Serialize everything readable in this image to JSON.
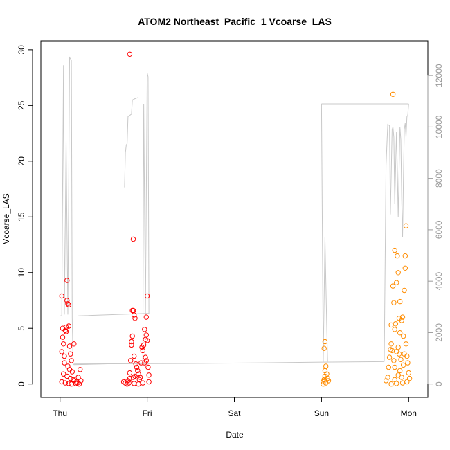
{
  "chart_data": {
    "type": "scatter",
    "title": "ATOM2 Northeast_Pacific_1 Vcoarse_LAS",
    "xlabel": "Date",
    "ylabel": "Vcoarse_LAS",
    "x_tick_labels": [
      "Thu",
      "Fri",
      "Sat",
      "Sun",
      "Mon"
    ],
    "x_tick_values": [
      0,
      1,
      2,
      3,
      4
    ],
    "x_unit": "days from Thu 00:00",
    "xlim": [
      -0.22,
      4.22
    ],
    "ylim": [
      -1.2,
      30.8
    ],
    "y_ticks": [
      0,
      5,
      10,
      15,
      20,
      25,
      30
    ],
    "y2lim": [
      -520,
      13350
    ],
    "y2_ticks": [
      0,
      2000,
      4000,
      6000,
      8000,
      10000,
      12000
    ],
    "y2_label": "",
    "grid": false,
    "colors": {
      "series_thu_fri": "#ff0000",
      "series_sun_mon": "#ff8c00",
      "altitude_line": "#c8c8c8",
      "right_axis": "#9a9a9a",
      "frame": "#000000"
    },
    "series": [
      {
        "color": "#ff0000",
        "marker": "open-circle",
        "points": [
          [
            0.02,
            7.9
          ],
          [
            0.03,
            5.0
          ],
          [
            0.03,
            4.2
          ],
          [
            0.04,
            3.6
          ],
          [
            0.02,
            2.9
          ],
          [
            0.05,
            2.5
          ],
          [
            0.06,
            4.8
          ],
          [
            0.07,
            5.1
          ],
          [
            0.07,
            4.7
          ],
          [
            0.08,
            9.3
          ],
          [
            0.08,
            7.5
          ],
          [
            0.09,
            7.2
          ],
          [
            0.1,
            7.1
          ],
          [
            0.1,
            5.2
          ],
          [
            0.11,
            3.4
          ],
          [
            0.12,
            2.7
          ],
          [
            0.13,
            2.1
          ],
          [
            0.05,
            1.9
          ],
          [
            0.09,
            1.6
          ],
          [
            0.11,
            1.3
          ],
          [
            0.14,
            1.1
          ],
          [
            0.04,
            0.9
          ],
          [
            0.08,
            0.7
          ],
          [
            0.12,
            0.5
          ],
          [
            0.15,
            0.4
          ],
          [
            0.16,
            0.3
          ],
          [
            0.02,
            0.2
          ],
          [
            0.06,
            0.1
          ],
          [
            0.1,
            0.05
          ],
          [
            0.13,
            0.0
          ],
          [
            0.18,
            0.05
          ],
          [
            0.2,
            0.1
          ],
          [
            0.22,
            0.0
          ],
          [
            0.24,
            0.3
          ],
          [
            0.21,
            0.6
          ],
          [
            0.23,
            1.3
          ],
          [
            0.16,
            3.6
          ],
          [
            0.19,
            0.2
          ],
          [
            0.73,
            0.2
          ],
          [
            0.75,
            0.1
          ],
          [
            0.78,
            0.3
          ],
          [
            0.8,
            0.5
          ],
          [
            0.8,
            1.0
          ],
          [
            0.81,
            2.1
          ],
          [
            0.82,
            3.8
          ],
          [
            0.82,
            3.5
          ],
          [
            0.83,
            4.3
          ],
          [
            0.83,
            6.6
          ],
          [
            0.84,
            6.6
          ],
          [
            0.85,
            6.2
          ],
          [
            0.86,
            5.9
          ],
          [
            0.84,
            13.0
          ],
          [
            0.8,
            29.6
          ],
          [
            0.85,
            2.5
          ],
          [
            0.87,
            1.8
          ],
          [
            0.88,
            1.5
          ],
          [
            0.89,
            1.2
          ],
          [
            0.9,
            0.9
          ],
          [
            0.86,
            0.7
          ],
          [
            0.84,
            0.6
          ],
          [
            0.91,
            0.4
          ],
          [
            0.92,
            0.6
          ],
          [
            0.93,
            1.9
          ],
          [
            0.94,
            3.3
          ],
          [
            0.95,
            3.0
          ],
          [
            0.96,
            3.5
          ],
          [
            0.97,
            1.9
          ],
          [
            0.98,
            2.4
          ],
          [
            0.99,
            2.1
          ],
          [
            1.0,
            3.9
          ],
          [
            0.99,
            4.4
          ],
          [
            0.98,
            4.0
          ],
          [
            0.97,
            4.9
          ],
          [
            0.99,
            6.0
          ],
          [
            1.0,
            7.9
          ],
          [
            1.01,
            1.5
          ],
          [
            1.02,
            0.8
          ],
          [
            1.02,
            0.2
          ],
          [
            0.95,
            0.1
          ],
          [
            0.9,
            0.0
          ],
          [
            0.85,
            0.05
          ],
          [
            0.77,
            0.0
          ],
          [
            0.79,
            0.1
          ]
        ]
      },
      {
        "color": "#ff8c00",
        "marker": "open-circle",
        "points": [
          [
            3.02,
            0.2
          ],
          [
            3.03,
            0.4
          ],
          [
            3.04,
            0.7
          ],
          [
            3.04,
            1.2
          ],
          [
            3.05,
            1.6
          ],
          [
            3.03,
            3.2
          ],
          [
            3.04,
            3.8
          ],
          [
            3.06,
            0.9
          ],
          [
            3.07,
            0.5
          ],
          [
            3.05,
            0.1
          ],
          [
            3.08,
            0.3
          ],
          [
            3.02,
            0.0
          ],
          [
            3.74,
            0.3
          ],
          [
            3.76,
            0.6
          ],
          [
            3.77,
            1.5
          ],
          [
            3.78,
            2.4
          ],
          [
            3.79,
            3.1
          ],
          [
            3.8,
            3.6
          ],
          [
            3.81,
            3.0
          ],
          [
            3.8,
            5.3
          ],
          [
            3.82,
            8.8
          ],
          [
            3.83,
            7.3
          ],
          [
            3.83,
            2.1
          ],
          [
            3.84,
            1.5
          ],
          [
            3.84,
            4.9
          ],
          [
            3.85,
            5.4
          ],
          [
            3.86,
            9.1
          ],
          [
            3.87,
            11.5
          ],
          [
            3.88,
            10.0
          ],
          [
            3.88,
            3.3
          ],
          [
            3.89,
            2.7
          ],
          [
            3.89,
            5.9
          ],
          [
            3.9,
            4.6
          ],
          [
            3.91,
            2.2
          ],
          [
            3.92,
            5.7
          ],
          [
            3.93,
            6.0
          ],
          [
            3.94,
            4.3
          ],
          [
            3.94,
            1.7
          ],
          [
            3.95,
            8.4
          ],
          [
            3.96,
            11.5
          ],
          [
            3.96,
            10.4
          ],
          [
            3.97,
            14.2
          ],
          [
            3.98,
            2.5
          ],
          [
            3.99,
            1.9
          ],
          [
            4.0,
            1.0
          ],
          [
            4.01,
            0.5
          ],
          [
            3.98,
            0.2
          ],
          [
            3.93,
            0.1
          ],
          [
            3.86,
            0.05
          ],
          [
            3.8,
            0.0
          ],
          [
            3.84,
            0.4
          ],
          [
            3.88,
            0.8
          ],
          [
            3.9,
            1.2
          ],
          [
            3.92,
            0.6
          ],
          [
            3.82,
            26.0
          ],
          [
            3.86,
            2.9
          ],
          [
            3.9,
            7.4
          ],
          [
            3.84,
            12.0
          ],
          [
            3.95,
            2.7
          ],
          [
            3.97,
            3.6
          ]
        ]
      }
    ],
    "altitude_line": {
      "color": "#c8c8c8",
      "segments": [
        [
          [
            0.0,
            2650
          ],
          [
            0.02,
            2650
          ],
          [
            0.04,
            12400
          ],
          [
            0.05,
            2700
          ],
          [
            0.07,
            9500
          ],
          [
            0.09,
            2700
          ],
          [
            0.11,
            12700
          ],
          [
            0.13,
            12600
          ],
          [
            0.14,
            2600
          ],
          [
            0.15,
            780
          ],
          [
            0.16,
            750
          ],
          [
            0.95,
            820
          ],
          [
            0.96,
            10900
          ],
          [
            0.98,
            2700
          ],
          [
            1.0,
            12100
          ],
          [
            1.01,
            11950
          ],
          [
            1.02,
            2750
          ],
          [
            0.21,
            2650
          ]
        ],
        [
          [
            0.74,
            7650
          ],
          [
            0.75,
            9000
          ],
          [
            0.76,
            9300
          ],
          [
            0.77,
            9350
          ],
          [
            0.78,
            10400
          ],
          [
            0.8,
            10450
          ],
          [
            0.82,
            10500
          ],
          [
            0.83,
            11050
          ],
          [
            0.86,
            11100
          ],
          [
            0.9,
            11150
          ]
        ],
        [
          [
            0.16,
            780
          ],
          [
            1.5,
            800
          ],
          [
            2.5,
            830
          ],
          [
            3.0,
            850
          ],
          [
            3.72,
            870
          ]
        ],
        [
          [
            3.0,
            10900
          ],
          [
            3.02,
            850
          ],
          [
            3.04,
            5700
          ],
          [
            3.06,
            2200
          ],
          [
            3.07,
            870
          ]
        ],
        [
          [
            3.72,
            870
          ],
          [
            3.74,
            8500
          ],
          [
            3.76,
            10100
          ],
          [
            3.78,
            10050
          ],
          [
            3.79,
            6600
          ],
          [
            3.81,
            9900
          ],
          [
            3.82,
            10000
          ],
          [
            3.83,
            9600
          ],
          [
            3.84,
            7000
          ],
          [
            3.86,
            9800
          ],
          [
            3.87,
            8400
          ],
          [
            3.88,
            6500
          ],
          [
            3.9,
            10000
          ],
          [
            3.91,
            9500
          ],
          [
            3.92,
            7200
          ],
          [
            3.93,
            5700
          ],
          [
            3.94,
            8000
          ],
          [
            3.95,
            9900
          ],
          [
            3.96,
            10150
          ],
          [
            3.97,
            9600
          ],
          [
            3.98,
            10400
          ],
          [
            3.99,
            10450
          ],
          [
            4.0,
            10900
          ]
        ],
        [
          [
            3.0,
            10900
          ],
          [
            4.0,
            10900
          ]
        ]
      ]
    }
  }
}
